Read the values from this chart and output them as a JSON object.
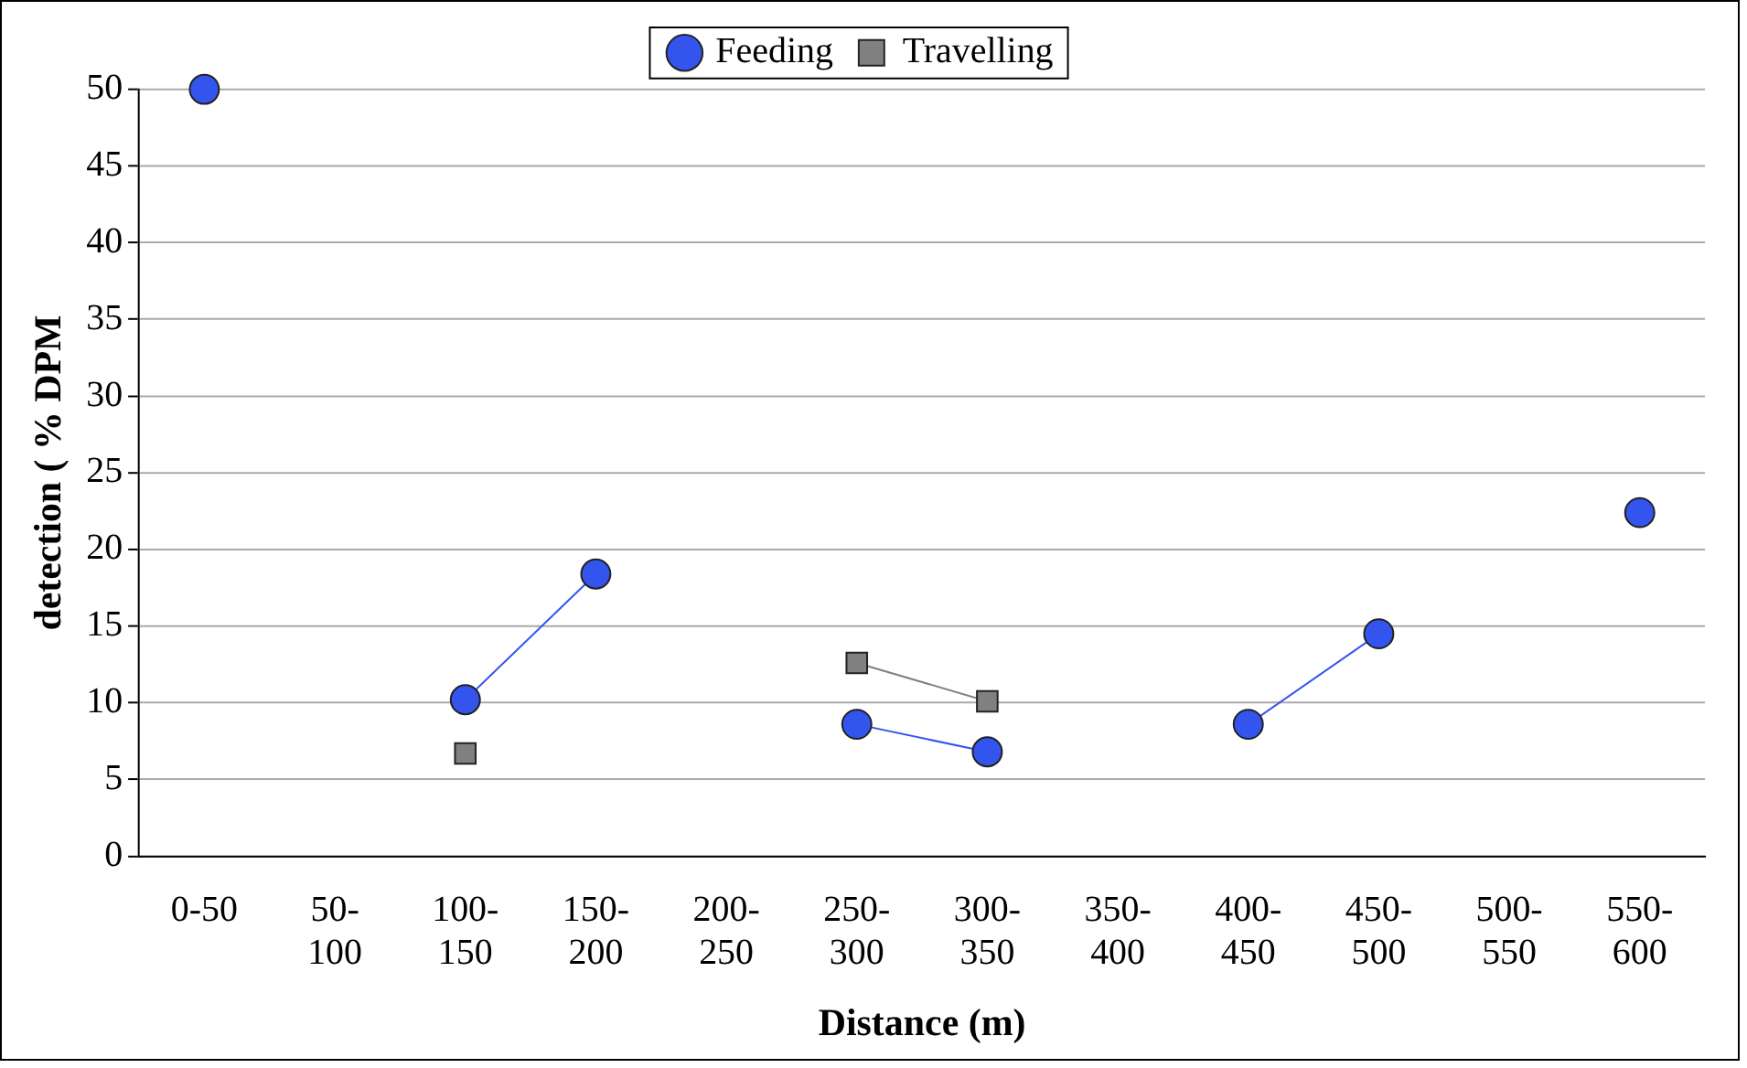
{
  "chart_data": {
    "type": "line",
    "xlabel": "Distance (m)",
    "ylabel": "detection ( % DPM",
    "categories": [
      "0-50",
      "50-100",
      "100-150",
      "150-200",
      "200-250",
      "250-300",
      "300-350",
      "350-400",
      "400-450",
      "450-500",
      "500-550",
      "550-600"
    ],
    "series": [
      {
        "name": "Feeding",
        "color": "#3355ee",
        "marker": "circle",
        "values": [
          50,
          null,
          10.2,
          18.4,
          null,
          8.6,
          6.8,
          null,
          8.6,
          14.5,
          null,
          22.4
        ]
      },
      {
        "name": "Travelling",
        "color": "#808080",
        "marker": "square",
        "values": [
          null,
          null,
          6.7,
          null,
          null,
          12.6,
          10.1,
          null,
          null,
          null,
          null,
          null
        ]
      }
    ],
    "ylim": [
      0,
      50
    ],
    "yticks": [
      0,
      5,
      10,
      15,
      20,
      25,
      30,
      35,
      40,
      45,
      50
    ],
    "grid": "y",
    "legend": "top"
  }
}
